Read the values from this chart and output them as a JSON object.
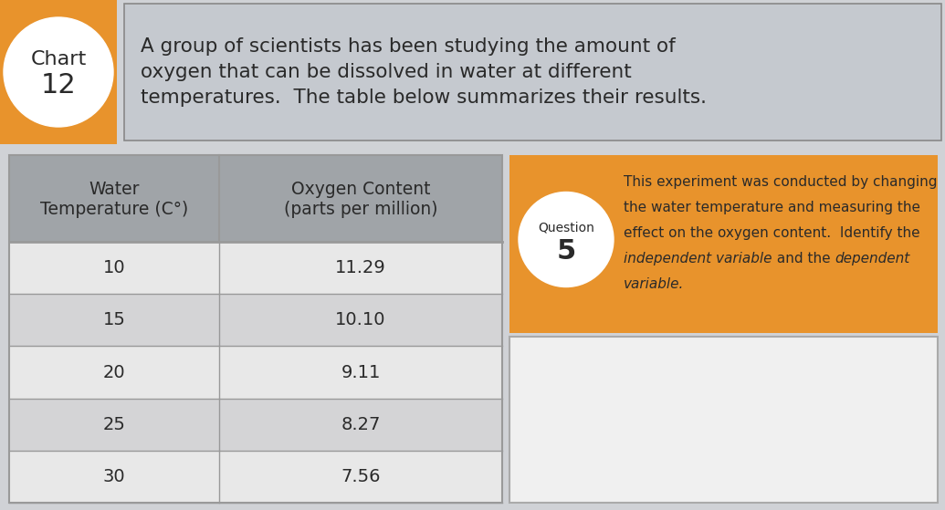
{
  "title_text": "A group of scientists has been studying the amount of\noxygen that can be dissolved in water at different\ntemperatures.  The table below summarizes their results.",
  "col1_header_line1": "Water",
  "col1_header_line2": "Temperature (C°)",
  "col2_header_line1": "Oxygen Content",
  "col2_header_line2": "(parts per million)",
  "question_label": "Question",
  "question_number": "5",
  "question_text_parts": [
    [
      "This experiment was conducted by changing",
      false
    ],
    [
      "the water temperature and measuring the",
      false
    ],
    [
      "effect on the oxygen content.  Identify the",
      false
    ],
    [
      "independent variable",
      true
    ],
    [
      " and the ",
      false
    ],
    [
      "dependent",
      true
    ],
    [
      "\nvariable.",
      true
    ]
  ],
  "table_data": [
    [
      "10",
      "11.29"
    ],
    [
      "15",
      "10.10"
    ],
    [
      "20",
      "9.11"
    ],
    [
      "25",
      "8.27"
    ],
    [
      "30",
      "7.56"
    ]
  ],
  "bg_color": "#d0d2d6",
  "orange_color": "#e8932c",
  "header_bg": "#a0a4a8",
  "row_bg_light": "#e8e8e8",
  "row_bg_mid": "#d4d4d6",
  "title_bg": "#c5c9cf",
  "white": "#ffffff",
  "answer_box_bg": "#f0f0f0",
  "answer_box_border": "#aaaaaa",
  "table_border": "#999999",
  "text_dark": "#2a2a2a",
  "header_outer_border": "#888888"
}
